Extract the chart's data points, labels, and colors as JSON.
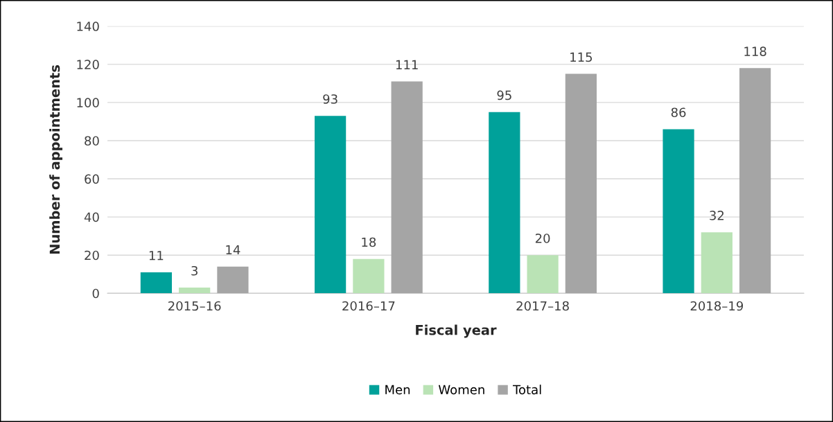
{
  "chart_data": {
    "type": "bar",
    "xlabel": "Fiscal year",
    "ylabel": "Number of appointments",
    "categories": [
      "2015–16",
      "2016–17",
      "2017–18",
      "2018–19"
    ],
    "series": [
      {
        "name": "Men",
        "color": "#00a19a",
        "values": [
          11,
          93,
          95,
          86
        ]
      },
      {
        "name": "Women",
        "color": "#bae3b5",
        "values": [
          3,
          18,
          20,
          32
        ]
      },
      {
        "name": "Total",
        "color": "#a5a5a5",
        "values": [
          14,
          111,
          115,
          118
        ]
      }
    ],
    "ylim": [
      0,
      140
    ],
    "yticks": [
      0,
      20,
      40,
      60,
      80,
      100,
      120,
      140
    ],
    "grid": "y",
    "legend": "bottom",
    "data_labels": true
  }
}
